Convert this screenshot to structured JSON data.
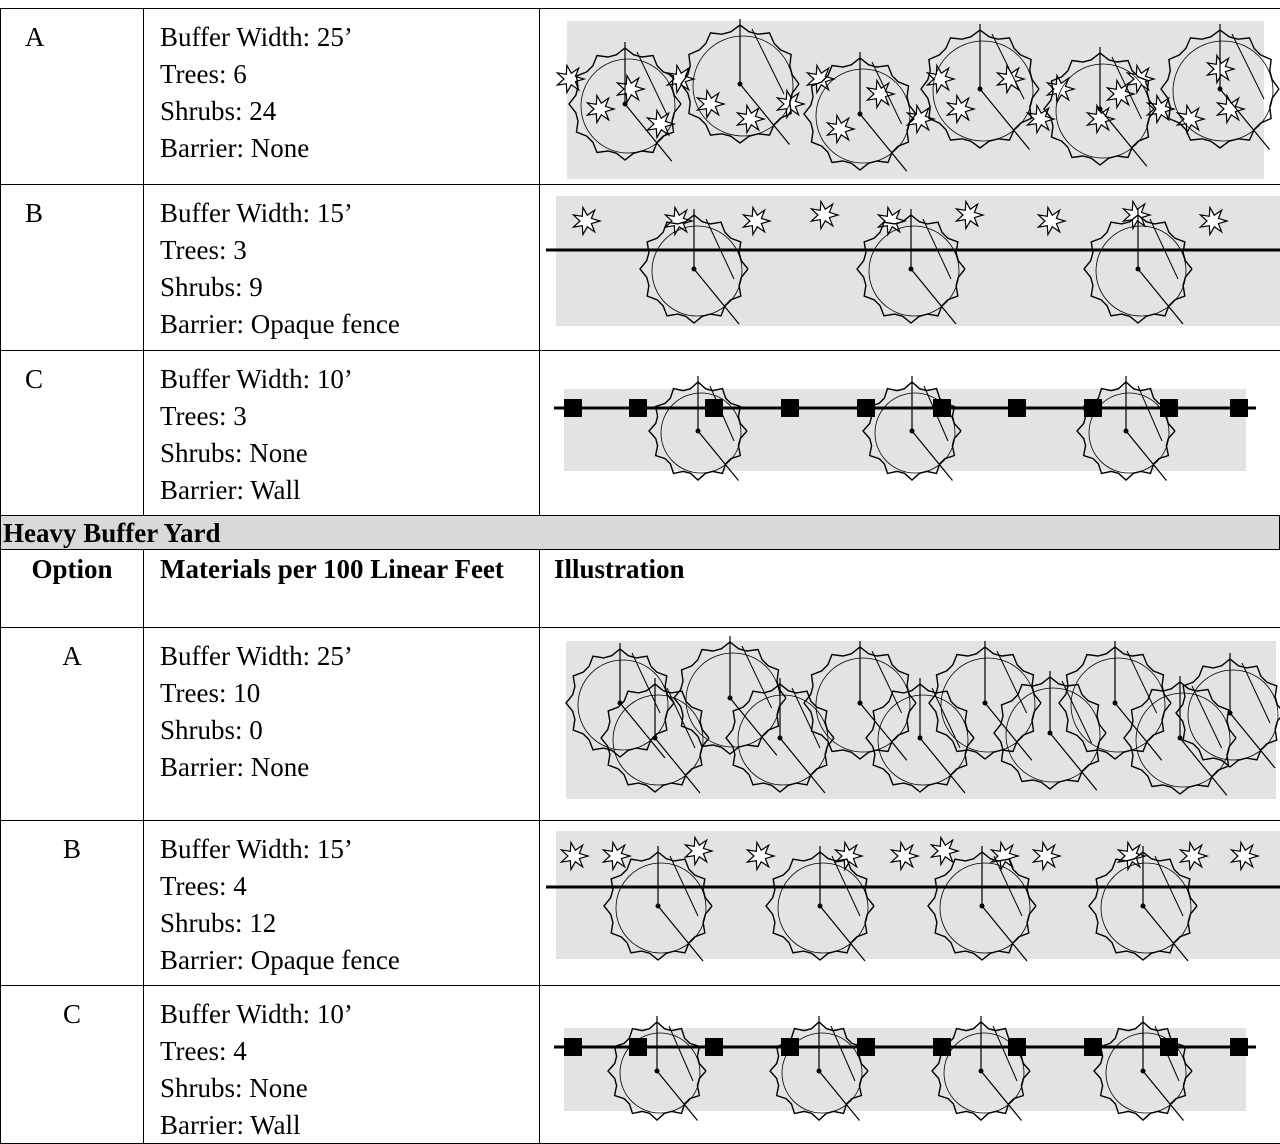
{
  "light": {
    "rows": [
      {
        "option": "A",
        "materials": [
          "Buffer Width: 25’",
          "Trees: 6",
          "Shrubs: 24",
          "Barrier: None"
        ]
      },
      {
        "option": "B",
        "materials": [
          "Buffer Width: 15’",
          "Trees: 3",
          "Shrubs: 9",
          "Barrier: Opaque fence"
        ]
      },
      {
        "option": "C",
        "materials": [
          "Buffer Width: 10’",
          "Trees: 3",
          "Shrubs: None",
          "Barrier: Wall"
        ]
      }
    ]
  },
  "heavy": {
    "title": "Heavy Buffer Yard",
    "headers": [
      "Option",
      "Materials per 100 Linear Feet",
      "Illustration"
    ],
    "rows": [
      {
        "option": "A",
        "materials": [
          "Buffer Width: 25’",
          "Trees: 10",
          "Shrubs: 0",
          "Barrier: None"
        ]
      },
      {
        "option": "B",
        "materials": [
          "Buffer Width: 15’",
          "Trees: 4",
          "Shrubs: 12",
          "Barrier: Opaque fence"
        ]
      },
      {
        "option": "C",
        "materials": [
          "Buffer Width: 10’",
          "Trees: 4",
          "Shrubs: None",
          "Barrier: Wall"
        ]
      }
    ]
  }
}
